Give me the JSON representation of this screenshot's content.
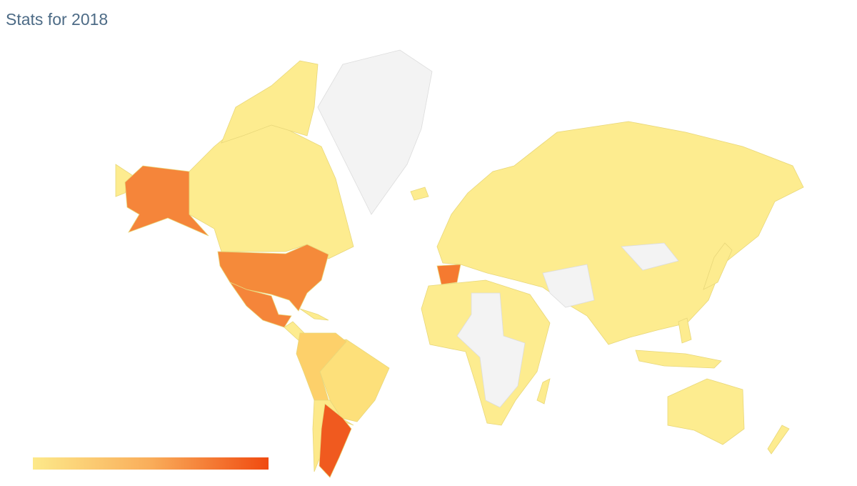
{
  "header": {
    "title": "Stats for 2018"
  }
}
